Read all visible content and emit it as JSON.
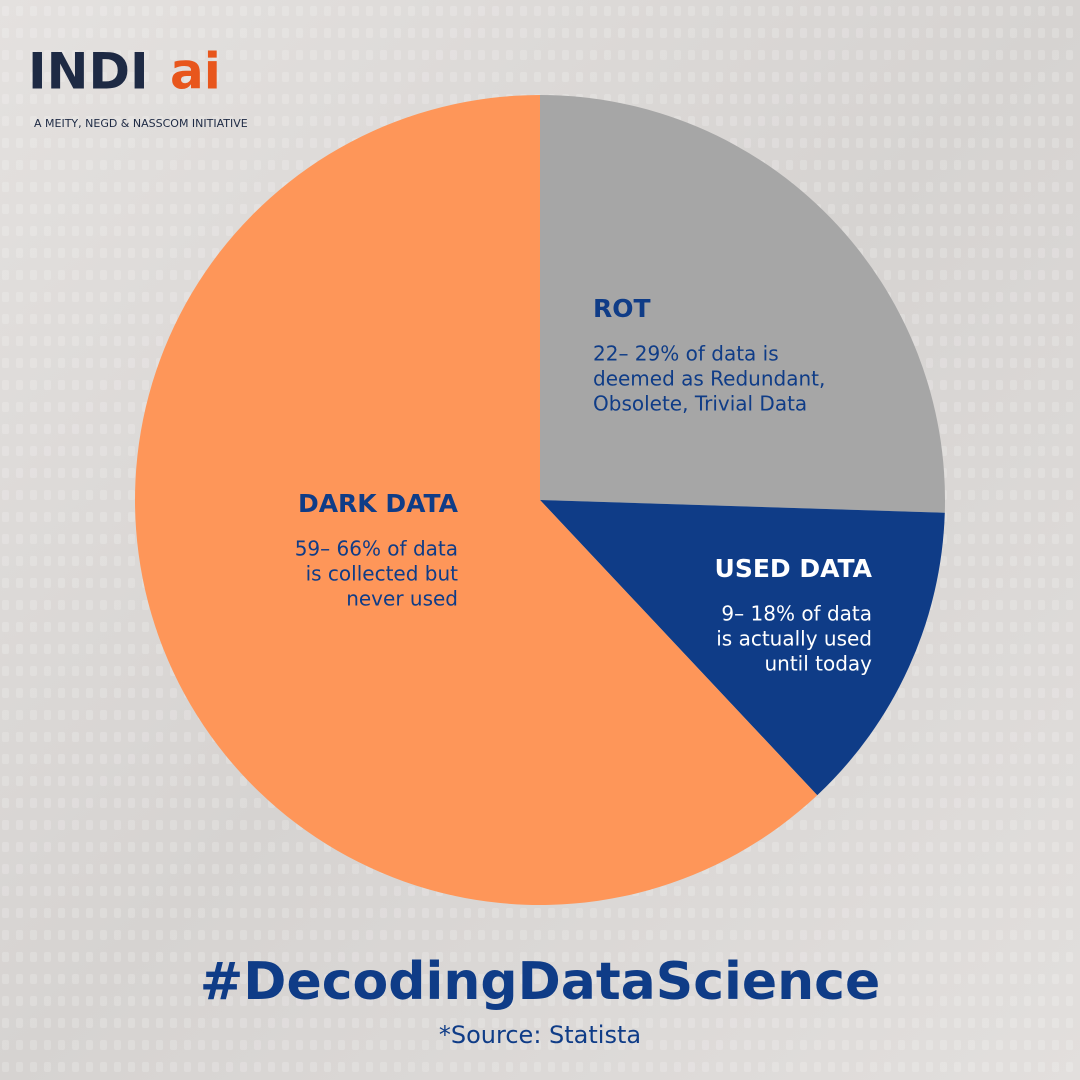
{
  "logo": {
    "text": "INDI",
    "accent": "ai",
    "tagline": "A MEITY, NEGD & NASSCOM INITIATIVE"
  },
  "chart_data": {
    "type": "pie",
    "categories": [
      "ROT",
      "USED DATA",
      "DARK DATA"
    ],
    "values": [
      25.5,
      12.5,
      62
    ],
    "colors": [
      "#a6a6a6",
      "#0f3c87",
      "#fe9659"
    ],
    "descriptions": [
      [
        "22– 29% of data is",
        "deemed as Redundant,",
        "Obsolete, Trivial Data"
      ],
      [
        "9– 18% of data",
        "is actually used",
        "until today"
      ],
      [
        "59– 66% of data",
        "is collected but",
        "never used"
      ]
    ]
  },
  "footer": {
    "hashtag": "#DecodingDataScience",
    "source": "*Source: Statista"
  }
}
